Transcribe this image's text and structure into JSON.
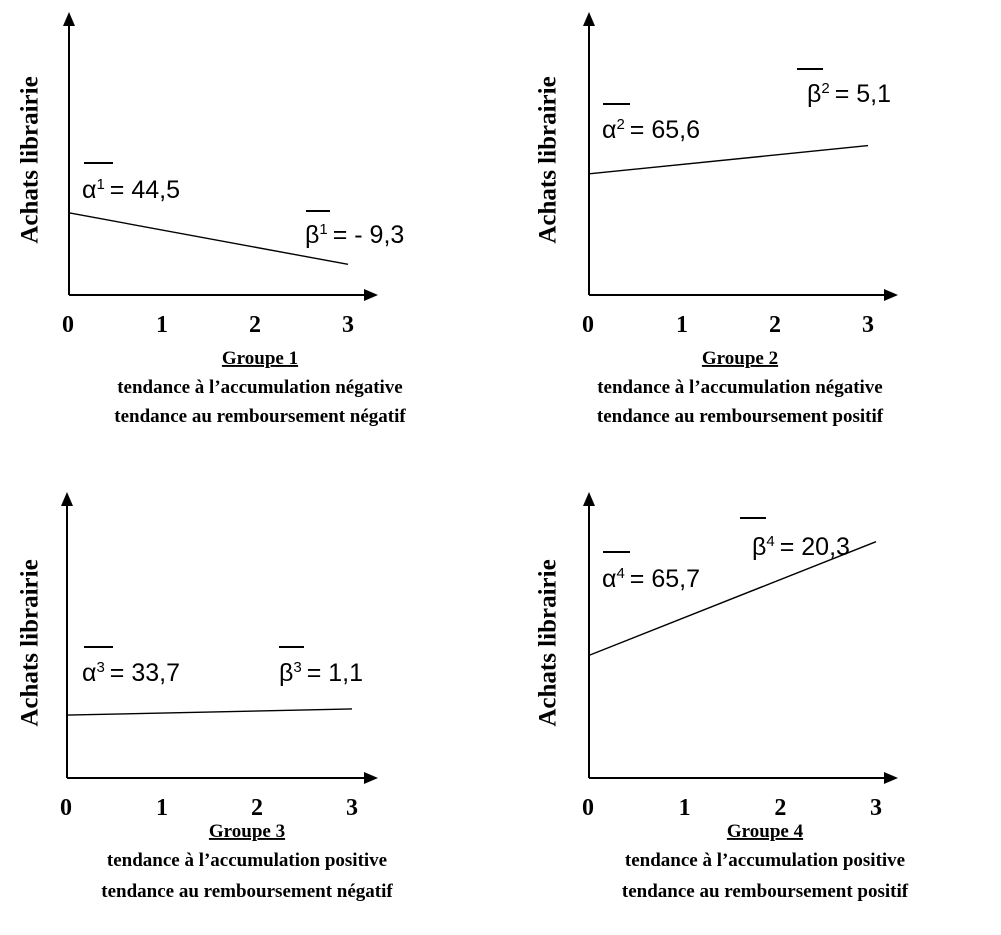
{
  "chart_data": [
    {
      "type": "line",
      "ylabel": "Achats librairie",
      "x_ticks": [
        "0",
        "1",
        "2",
        "3"
      ],
      "xlim": [
        0,
        3
      ],
      "ylim": [
        0,
        150
      ],
      "series": [
        {
          "x": [
            0,
            3
          ],
          "y": [
            44.5,
            16.6
          ]
        }
      ],
      "annotations": {
        "alpha": {
          "symbol": "α",
          "sup": "1",
          "value": "= 44,5"
        },
        "beta": {
          "symbol": "β",
          "sup": "1",
          "value": "= - 9,3"
        }
      },
      "title": "Groupe 1",
      "subtitle_lines": [
        "tendance à l’accumulation négative",
        "tendance au remboursement négatif"
      ]
    },
    {
      "type": "line",
      "ylabel": "Achats librairie",
      "x_ticks": [
        "0",
        "1",
        "2",
        "3"
      ],
      "xlim": [
        0,
        3
      ],
      "ylim": [
        0,
        150
      ],
      "series": [
        {
          "x": [
            0,
            3
          ],
          "y": [
            65.6,
            80.9
          ]
        }
      ],
      "annotations": {
        "alpha": {
          "symbol": "α",
          "sup": "2",
          "value": "= 65,6"
        },
        "beta": {
          "symbol": "β",
          "sup": "2",
          "value": "= 5,1"
        }
      },
      "title": "Groupe 2",
      "subtitle_lines": [
        "tendance à l’accumulation négative",
        "tendance au remboursement positif"
      ]
    },
    {
      "type": "line",
      "ylabel": "Achats librairie",
      "x_ticks": [
        "0",
        "1",
        "2",
        "3"
      ],
      "xlim": [
        0,
        3
      ],
      "ylim": [
        0,
        150
      ],
      "series": [
        {
          "x": [
            0,
            3
          ],
          "y": [
            33.7,
            37.0
          ]
        }
      ],
      "annotations": {
        "alpha": {
          "symbol": "α",
          "sup": "3",
          "value": "= 33,7"
        },
        "beta": {
          "symbol": "β",
          "sup": "3",
          "value": "= 1,1"
        }
      },
      "title": "Groupe 3",
      "subtitle_lines": [
        "tendance à l’accumulation positive",
        "tendance au remboursement négatif"
      ]
    },
    {
      "type": "line",
      "ylabel": "Achats librairie",
      "x_ticks": [
        "0",
        "1",
        "2",
        "3"
      ],
      "xlim": [
        0,
        3
      ],
      "ylim": [
        0,
        150
      ],
      "series": [
        {
          "x": [
            0,
            3
          ],
          "y": [
            65.7,
            126.6
          ]
        }
      ],
      "annotations": {
        "alpha": {
          "symbol": "α",
          "sup": "4",
          "value": "= 65,7"
        },
        "beta": {
          "symbol": "β",
          "sup": "4",
          "value": "= 20,3"
        }
      },
      "title": "Groupe 4",
      "subtitle_lines": [
        "tendance à l’accumulation positive",
        "tendance au remboursement positif"
      ]
    }
  ]
}
